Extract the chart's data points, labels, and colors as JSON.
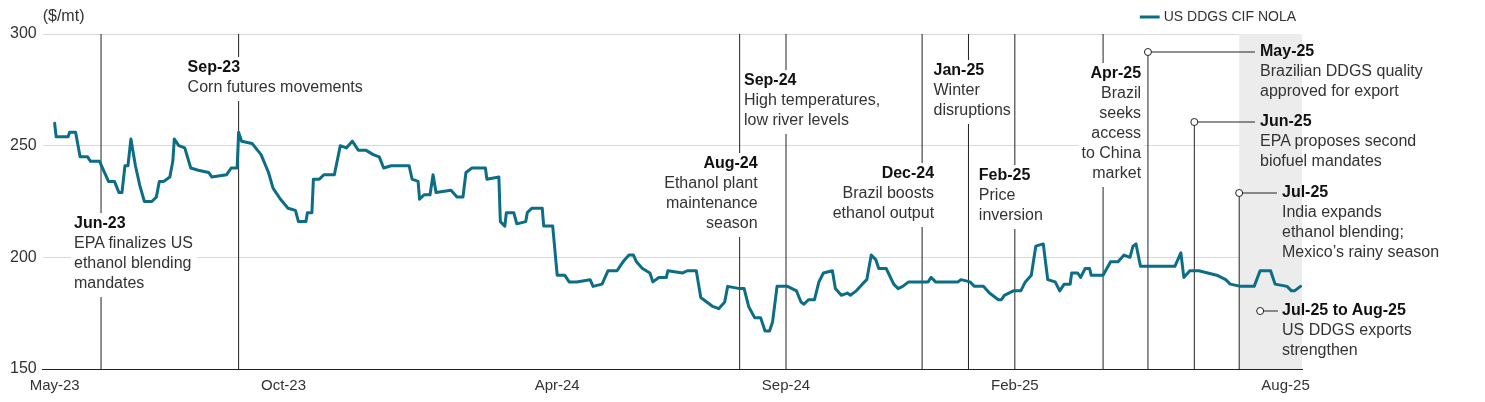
{
  "chart_data": {
    "type": "line",
    "ylabel": "($/mt)",
    "xlim": [
      "2023-04-23",
      "2025-08-12"
    ],
    "ylim": [
      150,
      300
    ],
    "yticks": [
      150,
      200,
      250,
      300
    ],
    "xticks": [
      {
        "value": "2023-05-01",
        "label": "May-23"
      },
      {
        "value": "2023-10-01",
        "label": "Oct-23"
      },
      {
        "value": "2024-04-01",
        "label": "Apr-24"
      },
      {
        "value": "2024-09-01",
        "label": "Sep-24"
      },
      {
        "value": "2025-02-01",
        "label": "Feb-25"
      },
      {
        "value": "2025-08-01",
        "label": "Aug-25"
      }
    ],
    "grid": "y",
    "legend": "top right",
    "marker": "none",
    "line_style": "solid",
    "series": [
      {
        "name": "US DDGS CIF NOLA",
        "color": "#0b6e86",
        "x": [
          "2023-05-01",
          "2023-05-02",
          "2023-05-10",
          "2023-05-11",
          "2023-05-15",
          "2023-05-18",
          "2023-05-23",
          "2023-05-25",
          "2023-05-31",
          "2023-06-06",
          "2023-06-10",
          "2023-06-13",
          "2023-06-15",
          "2023-06-17",
          "2023-06-19",
          "2023-06-21",
          "2023-06-24",
          "2023-06-27",
          "2023-06-30",
          "2023-07-05",
          "2023-07-08",
          "2023-07-10",
          "2023-07-13",
          "2023-07-17",
          "2023-07-19",
          "2023-07-20",
          "2023-07-23",
          "2023-07-27",
          "2023-07-31",
          "2023-08-05",
          "2023-08-12",
          "2023-08-14",
          "2023-08-24",
          "2023-08-27",
          "2023-08-31",
          "2023-09-01",
          "2023-09-03",
          "2023-09-10",
          "2023-09-16",
          "2023-09-21",
          "2023-09-24",
          "2023-09-29",
          "2023-10-04",
          "2023-10-09",
          "2023-10-11",
          "2023-10-16",
          "2023-10-17",
          "2023-10-20",
          "2023-10-21",
          "2023-10-25",
          "2023-10-28",
          "2023-11-04",
          "2023-11-08",
          "2023-11-12",
          "2023-11-16",
          "2023-11-20",
          "2023-11-25",
          "2023-11-30",
          "2023-12-04",
          "2023-12-07",
          "2023-12-12",
          "2023-12-24",
          "2023-12-26",
          "2023-12-30",
          "2023-12-31",
          "2024-01-03",
          "2024-01-07",
          "2024-01-09",
          "2024-01-11",
          "2024-01-21",
          "2024-01-25",
          "2024-01-29",
          "2024-01-31",
          "2024-02-04",
          "2024-02-13",
          "2024-02-14",
          "2024-02-22",
          "2024-02-23",
          "2024-02-26",
          "2024-02-27",
          "2024-03-03",
          "2024-03-05",
          "2024-03-11",
          "2024-03-12",
          "2024-03-15",
          "2024-03-22",
          "2024-03-23",
          "2024-03-29",
          "2024-04-01",
          "2024-04-06",
          "2024-04-09",
          "2024-04-14",
          "2024-04-23",
          "2024-04-25",
          "2024-05-01",
          "2024-05-05",
          "2024-05-11",
          "2024-05-15",
          "2024-05-19",
          "2024-05-22",
          "2024-05-24",
          "2024-05-28",
          "2024-06-02",
          "2024-06-04",
          "2024-06-08",
          "2024-06-13",
          "2024-06-14",
          "2024-06-24",
          "2024-06-27",
          "2024-07-03",
          "2024-07-06",
          "2024-07-10",
          "2024-07-14",
          "2024-07-18",
          "2024-07-22",
          "2024-07-24",
          "2024-08-01",
          "2024-08-04",
          "2024-08-07",
          "2024-08-11",
          "2024-08-15",
          "2024-08-18",
          "2024-08-21",
          "2024-08-23",
          "2024-08-26",
          "2024-09-02",
          "2024-09-08",
          "2024-09-11",
          "2024-09-13",
          "2024-09-16",
          "2024-09-20",
          "2024-09-23",
          "2024-09-26",
          "2024-10-02",
          "2024-10-04",
          "2024-10-08",
          "2024-10-12",
          "2024-10-14",
          "2024-10-18",
          "2024-10-22",
          "2024-10-25",
          "2024-10-28",
          "2024-10-31",
          "2024-11-02",
          "2024-11-07",
          "2024-11-12",
          "2024-11-15",
          "2024-11-18",
          "2024-11-22",
          "2024-12-05",
          "2024-12-07",
          "2024-12-10",
          "2024-12-25",
          "2024-12-27",
          "2025-01-02",
          "2025-01-05",
          "2025-01-11",
          "2025-01-15",
          "2025-01-21",
          "2025-01-23",
          "2025-01-25",
          "2025-01-31",
          "2025-02-05",
          "2025-02-08",
          "2025-02-12",
          "2025-02-15",
          "2025-02-20",
          "2025-02-23",
          "2025-02-28",
          "2025-03-03",
          "2025-03-06",
          "2025-03-10",
          "2025-03-11",
          "2025-03-15",
          "2025-03-17",
          "2025-03-20",
          "2025-03-23",
          "2025-03-24",
          "2025-04-01",
          "2025-04-06",
          "2025-04-11",
          "2025-04-15",
          "2025-04-19",
          "2025-04-21",
          "2025-04-23",
          "2025-04-26",
          "2025-05-02",
          "2025-05-19",
          "2025-05-23",
          "2025-05-25",
          "2025-05-29",
          "2025-06-04",
          "2025-06-10",
          "2025-06-16",
          "2025-06-22",
          "2025-06-25",
          "2025-07-02",
          "2025-07-11",
          "2025-07-15",
          "2025-07-22",
          "2025-07-25",
          "2025-08-02",
          "2025-08-05",
          "2025-08-07",
          "2025-08-11"
        ],
        "values": [
          260,
          254,
          254,
          256,
          256,
          245,
          245,
          243,
          243,
          234,
          234,
          229,
          229,
          241,
          241,
          253,
          241,
          232,
          225,
          225,
          227,
          234,
          234,
          236,
          243,
          253,
          250,
          249,
          240,
          239,
          238,
          236,
          237,
          240,
          240,
          256,
          252,
          251,
          246,
          238,
          231,
          226,
          222,
          221,
          216,
          216,
          220,
          220,
          235,
          235,
          237,
          237,
          250,
          249,
          252,
          248,
          248,
          246,
          245,
          240,
          241,
          241,
          235,
          234,
          226,
          228,
          228,
          237,
          229,
          230,
          227,
          227,
          238,
          240,
          240,
          235,
          236,
          216,
          214,
          220,
          220,
          215,
          216,
          220,
          222,
          222,
          214,
          214,
          192,
          192,
          189,
          189,
          190,
          187,
          188,
          194,
          194,
          198,
          201,
          201,
          198,
          195,
          193,
          189,
          191,
          191,
          194,
          193,
          194,
          194,
          182,
          180,
          178,
          177,
          180,
          187,
          186,
          186,
          178,
          173,
          173,
          167,
          167,
          171,
          187,
          187,
          185,
          180,
          179,
          181,
          181,
          189,
          193,
          194,
          186,
          183,
          184,
          183,
          185,
          188,
          190,
          201,
          199,
          195,
          195,
          188,
          186,
          187,
          189,
          189,
          191,
          189,
          189,
          190,
          189,
          187,
          187,
          184,
          181,
          181,
          183,
          185,
          185,
          189,
          192,
          205,
          206,
          190,
          189,
          185,
          188,
          188,
          193,
          193,
          191,
          195,
          195,
          192,
          192,
          198,
          198,
          201,
          200,
          205,
          206,
          196,
          196,
          196,
          202,
          191,
          194,
          194,
          193,
          192,
          190,
          188,
          187,
          187,
          194,
          194,
          188,
          187,
          185,
          185,
          187
        ]
      }
    ],
    "ref_lines": [
      {
        "axis": "x",
        "value": "2023-06-01",
        "label": "Jun-23\nEPA finalizes US\nethanol blending\nmandates"
      },
      {
        "axis": "x",
        "value": "2023-09-01",
        "label": "Sep-23\nCorn futures movements"
      },
      {
        "axis": "x",
        "value": "2024-08-01",
        "label": "Aug-24\nEthanol plant\nmaintenance\nseason"
      },
      {
        "axis": "x",
        "value": "2024-09-01",
        "label": "Sep-24\nHigh temperatures,\nlow river levels"
      },
      {
        "axis": "x",
        "value": "2024-12-01",
        "label": "Dec-24\nBrazil boosts\nethanol output"
      },
      {
        "axis": "x",
        "value": "2025-01-01",
        "label": "Jan-25\nWinter\ndisruptions"
      },
      {
        "axis": "x",
        "value": "2025-02-01",
        "label": "Feb-25\nPrice\ninversion"
      },
      {
        "axis": "x",
        "value": "2025-04-01",
        "label": "Apr-25\nBrazil\nseeks\naccess\nto China\nmarket"
      },
      {
        "axis": "x",
        "value": "2025-05-01",
        "label": "May-25\nBrazilian DDGS quality\napproved for export"
      },
      {
        "axis": "x",
        "value": "2025-06-01",
        "label": "Jun-25\nEPA proposes second\nbiofuel mandates"
      },
      {
        "axis": "x",
        "value": "2025-07-01",
        "label": "Jul-25\nIndia expands\nethanol blending;\nMexico’s rainy season"
      }
    ],
    "bands": [
      {
        "axis": "x",
        "from": "2025-07-01",
        "to": "2025-08-12",
        "color": "#ececec",
        "label": "Jul-25 to Aug-25\nUS DDGS exports\nstrengthen"
      }
    ]
  }
}
